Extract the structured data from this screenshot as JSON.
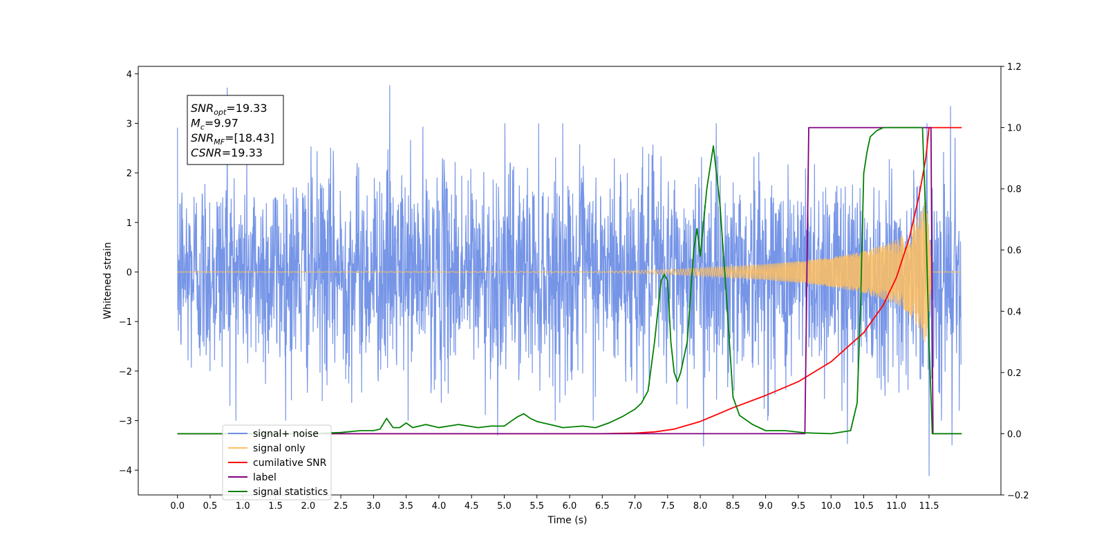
{
  "chart_data": {
    "type": "line",
    "xlabel": "Time (s)",
    "ylabel": "Whitened strain",
    "xlim": [
      -0.6,
      12.6
    ],
    "ylim": [
      -4.5,
      4.15
    ],
    "y2lim": [
      -0.2,
      1.2
    ],
    "xticks": [
      "0.0",
      "0.5",
      "1.0",
      "1.5",
      "2.0",
      "2.5",
      "3.0",
      "3.5",
      "4.0",
      "4.5",
      "5.0",
      "5.5",
      "6.0",
      "6.5",
      "7.0",
      "7.5",
      "8.0",
      "8.5",
      "9.0",
      "9.5",
      "10.0",
      "10.5",
      "11.0",
      "11.5"
    ],
    "yticks": [
      "−4",
      "−3",
      "−2",
      "−1",
      "0",
      "1",
      "2",
      "3",
      "4"
    ],
    "y2ticks": [
      "−0.2",
      "0.0",
      "0.2",
      "0.4",
      "0.6",
      "0.8",
      "1.0",
      "1.2"
    ],
    "annotation": {
      "lines": [
        {
          "sym": "SNR",
          "sub": "opt",
          "val": "=19.33"
        },
        {
          "sym": "M",
          "sub": "c",
          "val": "=9.97"
        },
        {
          "sym": "SNR",
          "sub": "MF",
          "val": "=[18.43]"
        },
        {
          "sym": "CSNR",
          "sub": "",
          "val": "=19.33"
        }
      ]
    },
    "legend": {
      "placement": "lower-left",
      "entries": [
        {
          "label": "signal+ noise",
          "color": "#6f8fe6"
        },
        {
          "label": "signal only",
          "color": "#ffbf60"
        },
        {
          "label": "cumilative SNR",
          "color": "#ff0000"
        },
        {
          "label": "label",
          "color": "#800080"
        },
        {
          "label": "signal statistics",
          "color": "#008000"
        }
      ]
    },
    "series": [
      {
        "name": "signal+ noise",
        "axis": "left",
        "color": "#6f8fe6",
        "x_range": [
          0.0,
          11.99
        ],
        "noise_std": 1.0,
        "peaks": [
          [
            0.76,
            3.72
          ],
          [
            3.25,
            3.77
          ],
          [
            11.83,
            3.35
          ],
          [
            11.5,
            -4.12
          ],
          [
            8.05,
            -3.52
          ],
          [
            10.25,
            -3.47
          ],
          [
            11.85,
            -3.5
          ],
          [
            4.9,
            -3.3
          ]
        ],
        "typical_range": [
          -2.7,
          2.7
        ]
      },
      {
        "name": "signal only",
        "axis": "left",
        "color": "#ffbf60",
        "x": [
          0.0,
          6.5,
          7.0,
          7.5,
          8.0,
          8.5,
          9.0,
          9.5,
          10.0,
          10.5,
          11.0,
          11.2,
          11.35,
          11.45,
          11.5,
          11.55,
          12.0
        ],
        "amplitude": [
          0.0,
          0.01,
          0.03,
          0.05,
          0.08,
          0.12,
          0.16,
          0.22,
          0.3,
          0.42,
          0.65,
          0.85,
          1.15,
          1.5,
          0.9,
          0.0,
          0.0
        ]
      },
      {
        "name": "cumilative SNR",
        "axis": "right",
        "color": "#ff0000",
        "x": [
          0.0,
          6.5,
          7.0,
          7.3,
          7.6,
          8.0,
          8.5,
          9.0,
          9.5,
          10.0,
          10.5,
          10.8,
          11.0,
          11.2,
          11.35,
          11.45,
          11.5,
          12.0
        ],
        "y": [
          0.0,
          0.0,
          0.002,
          0.006,
          0.015,
          0.04,
          0.085,
          0.125,
          0.17,
          0.235,
          0.33,
          0.42,
          0.51,
          0.64,
          0.78,
          0.9,
          1.0,
          1.0
        ]
      },
      {
        "name": "label",
        "axis": "right",
        "color": "#800080",
        "x": [
          0.0,
          9.6,
          9.66,
          11.53,
          11.56,
          12.0
        ],
        "y": [
          0.0,
          0.0,
          1.0,
          1.0,
          0.0,
          0.0
        ]
      },
      {
        "name": "signal statistics",
        "axis": "right",
        "color": "#008000",
        "x": [
          0.0,
          1.0,
          2.0,
          2.5,
          2.8,
          3.0,
          3.1,
          3.2,
          3.3,
          3.4,
          3.5,
          3.6,
          3.8,
          4.0,
          4.3,
          4.6,
          4.8,
          5.0,
          5.1,
          5.2,
          5.3,
          5.4,
          5.5,
          5.7,
          5.9,
          6.2,
          6.4,
          6.6,
          6.8,
          7.0,
          7.1,
          7.2,
          7.3,
          7.4,
          7.45,
          7.5,
          7.55,
          7.6,
          7.65,
          7.7,
          7.8,
          7.9,
          7.95,
          8.0,
          8.1,
          8.2,
          8.3,
          8.4,
          8.5,
          8.6,
          8.8,
          9.0,
          9.3,
          9.6,
          10.0,
          10.3,
          10.4,
          10.45,
          10.5,
          10.55,
          10.6,
          10.7,
          10.8,
          11.0,
          11.4,
          11.45,
          11.5,
          11.55,
          11.6,
          12.0
        ],
        "y": [
          0.0,
          0.0,
          0.0,
          0.004,
          0.01,
          0.01,
          0.015,
          0.05,
          0.02,
          0.02,
          0.035,
          0.02,
          0.03,
          0.02,
          0.03,
          0.02,
          0.025,
          0.025,
          0.04,
          0.055,
          0.065,
          0.05,
          0.04,
          0.03,
          0.02,
          0.025,
          0.02,
          0.035,
          0.055,
          0.08,
          0.1,
          0.14,
          0.3,
          0.5,
          0.52,
          0.5,
          0.3,
          0.2,
          0.17,
          0.2,
          0.3,
          0.6,
          0.67,
          0.58,
          0.8,
          0.94,
          0.75,
          0.45,
          0.12,
          0.06,
          0.03,
          0.01,
          0.01,
          0.003,
          0.0,
          0.01,
          0.1,
          0.4,
          0.85,
          0.92,
          0.97,
          0.99,
          1.0,
          1.0,
          1.0,
          0.7,
          0.3,
          0.0,
          0.0,
          0.0
        ]
      }
    ]
  }
}
